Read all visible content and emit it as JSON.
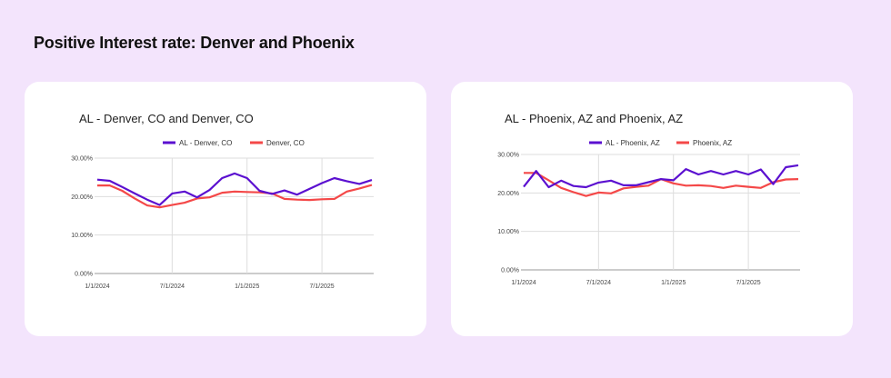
{
  "page_title": "Positive Interest rate: Denver and Phoenix",
  "colors": {
    "primary": "#5b10d0",
    "secondary": "#f44848",
    "background": "#f3e4fc"
  },
  "chart_data": [
    {
      "type": "line",
      "title": "AL - Denver, CO and Denver, CO",
      "x_tick_labels": [
        "1/1/2024",
        "7/1/2024",
        "1/1/2025",
        "7/1/2025"
      ],
      "y_tick_labels": [
        "0.00%",
        "10.00%",
        "20.00%",
        "30.00%"
      ],
      "ylim": [
        0,
        30
      ],
      "x": [
        "2024-01",
        "2024-02",
        "2024-03",
        "2024-04",
        "2024-05",
        "2024-06",
        "2024-07",
        "2024-08",
        "2024-09",
        "2024-10",
        "2024-11",
        "2024-12",
        "2025-01",
        "2025-02",
        "2025-03",
        "2025-04",
        "2025-05",
        "2025-06",
        "2025-07",
        "2025-08",
        "2025-09",
        "2025-10",
        "2025-11"
      ],
      "legend_position": "top",
      "grid": true,
      "series": [
        {
          "name": "AL - Denver, CO",
          "color": "#5b10d0",
          "values": [
            24.4,
            24.1,
            22.5,
            20.8,
            19.2,
            17.8,
            20.8,
            21.3,
            19.8,
            21.7,
            24.8,
            26.0,
            24.8,
            21.5,
            20.7,
            21.6,
            20.5,
            22.0,
            23.5,
            24.8,
            24.0,
            23.3,
            24.3
          ]
        },
        {
          "name": "Denver, CO",
          "color": "#f44848",
          "values": [
            22.9,
            22.9,
            21.5,
            19.5,
            17.7,
            17.2,
            17.8,
            18.4,
            19.5,
            19.8,
            21.0,
            21.3,
            21.2,
            21.1,
            20.8,
            19.4,
            19.2,
            19.1,
            19.3,
            19.4,
            21.3,
            22.1,
            23.0
          ]
        }
      ]
    },
    {
      "type": "line",
      "title": "AL - Phoenix, AZ and Phoenix, AZ",
      "x_tick_labels": [
        "1/1/2024",
        "7/1/2024",
        "1/1/2025",
        "7/1/2025"
      ],
      "y_tick_labels": [
        "0.00%",
        "10.00%",
        "20.00%",
        "30.00%"
      ],
      "ylim": [
        0,
        30
      ],
      "x": [
        "2024-01",
        "2024-02",
        "2024-03",
        "2024-04",
        "2024-05",
        "2024-06",
        "2024-07",
        "2024-08",
        "2024-09",
        "2024-10",
        "2024-11",
        "2024-12",
        "2025-01",
        "2025-02",
        "2025-03",
        "2025-04",
        "2025-05",
        "2025-06",
        "2025-07",
        "2025-08",
        "2025-09",
        "2025-10",
        "2025-11"
      ],
      "legend_position": "top",
      "grid": true,
      "series": [
        {
          "name": "AL - Phoenix, AZ",
          "color": "#5b10d0",
          "values": [
            21.6,
            25.7,
            21.5,
            23.2,
            21.8,
            21.5,
            22.7,
            23.2,
            22.0,
            22.0,
            22.8,
            23.6,
            23.3,
            26.2,
            24.8,
            25.7,
            24.8,
            25.7,
            24.8,
            26.1,
            22.3,
            26.7,
            27.2
          ]
        },
        {
          "name": "Phoenix, AZ",
          "color": "#f44848",
          "values": [
            25.2,
            25.2,
            23.3,
            21.3,
            20.2,
            19.2,
            20.1,
            19.9,
            21.2,
            21.6,
            21.9,
            23.6,
            22.5,
            21.9,
            22.0,
            21.8,
            21.3,
            21.9,
            21.6,
            21.3,
            22.8,
            23.5,
            23.6
          ]
        }
      ]
    }
  ]
}
